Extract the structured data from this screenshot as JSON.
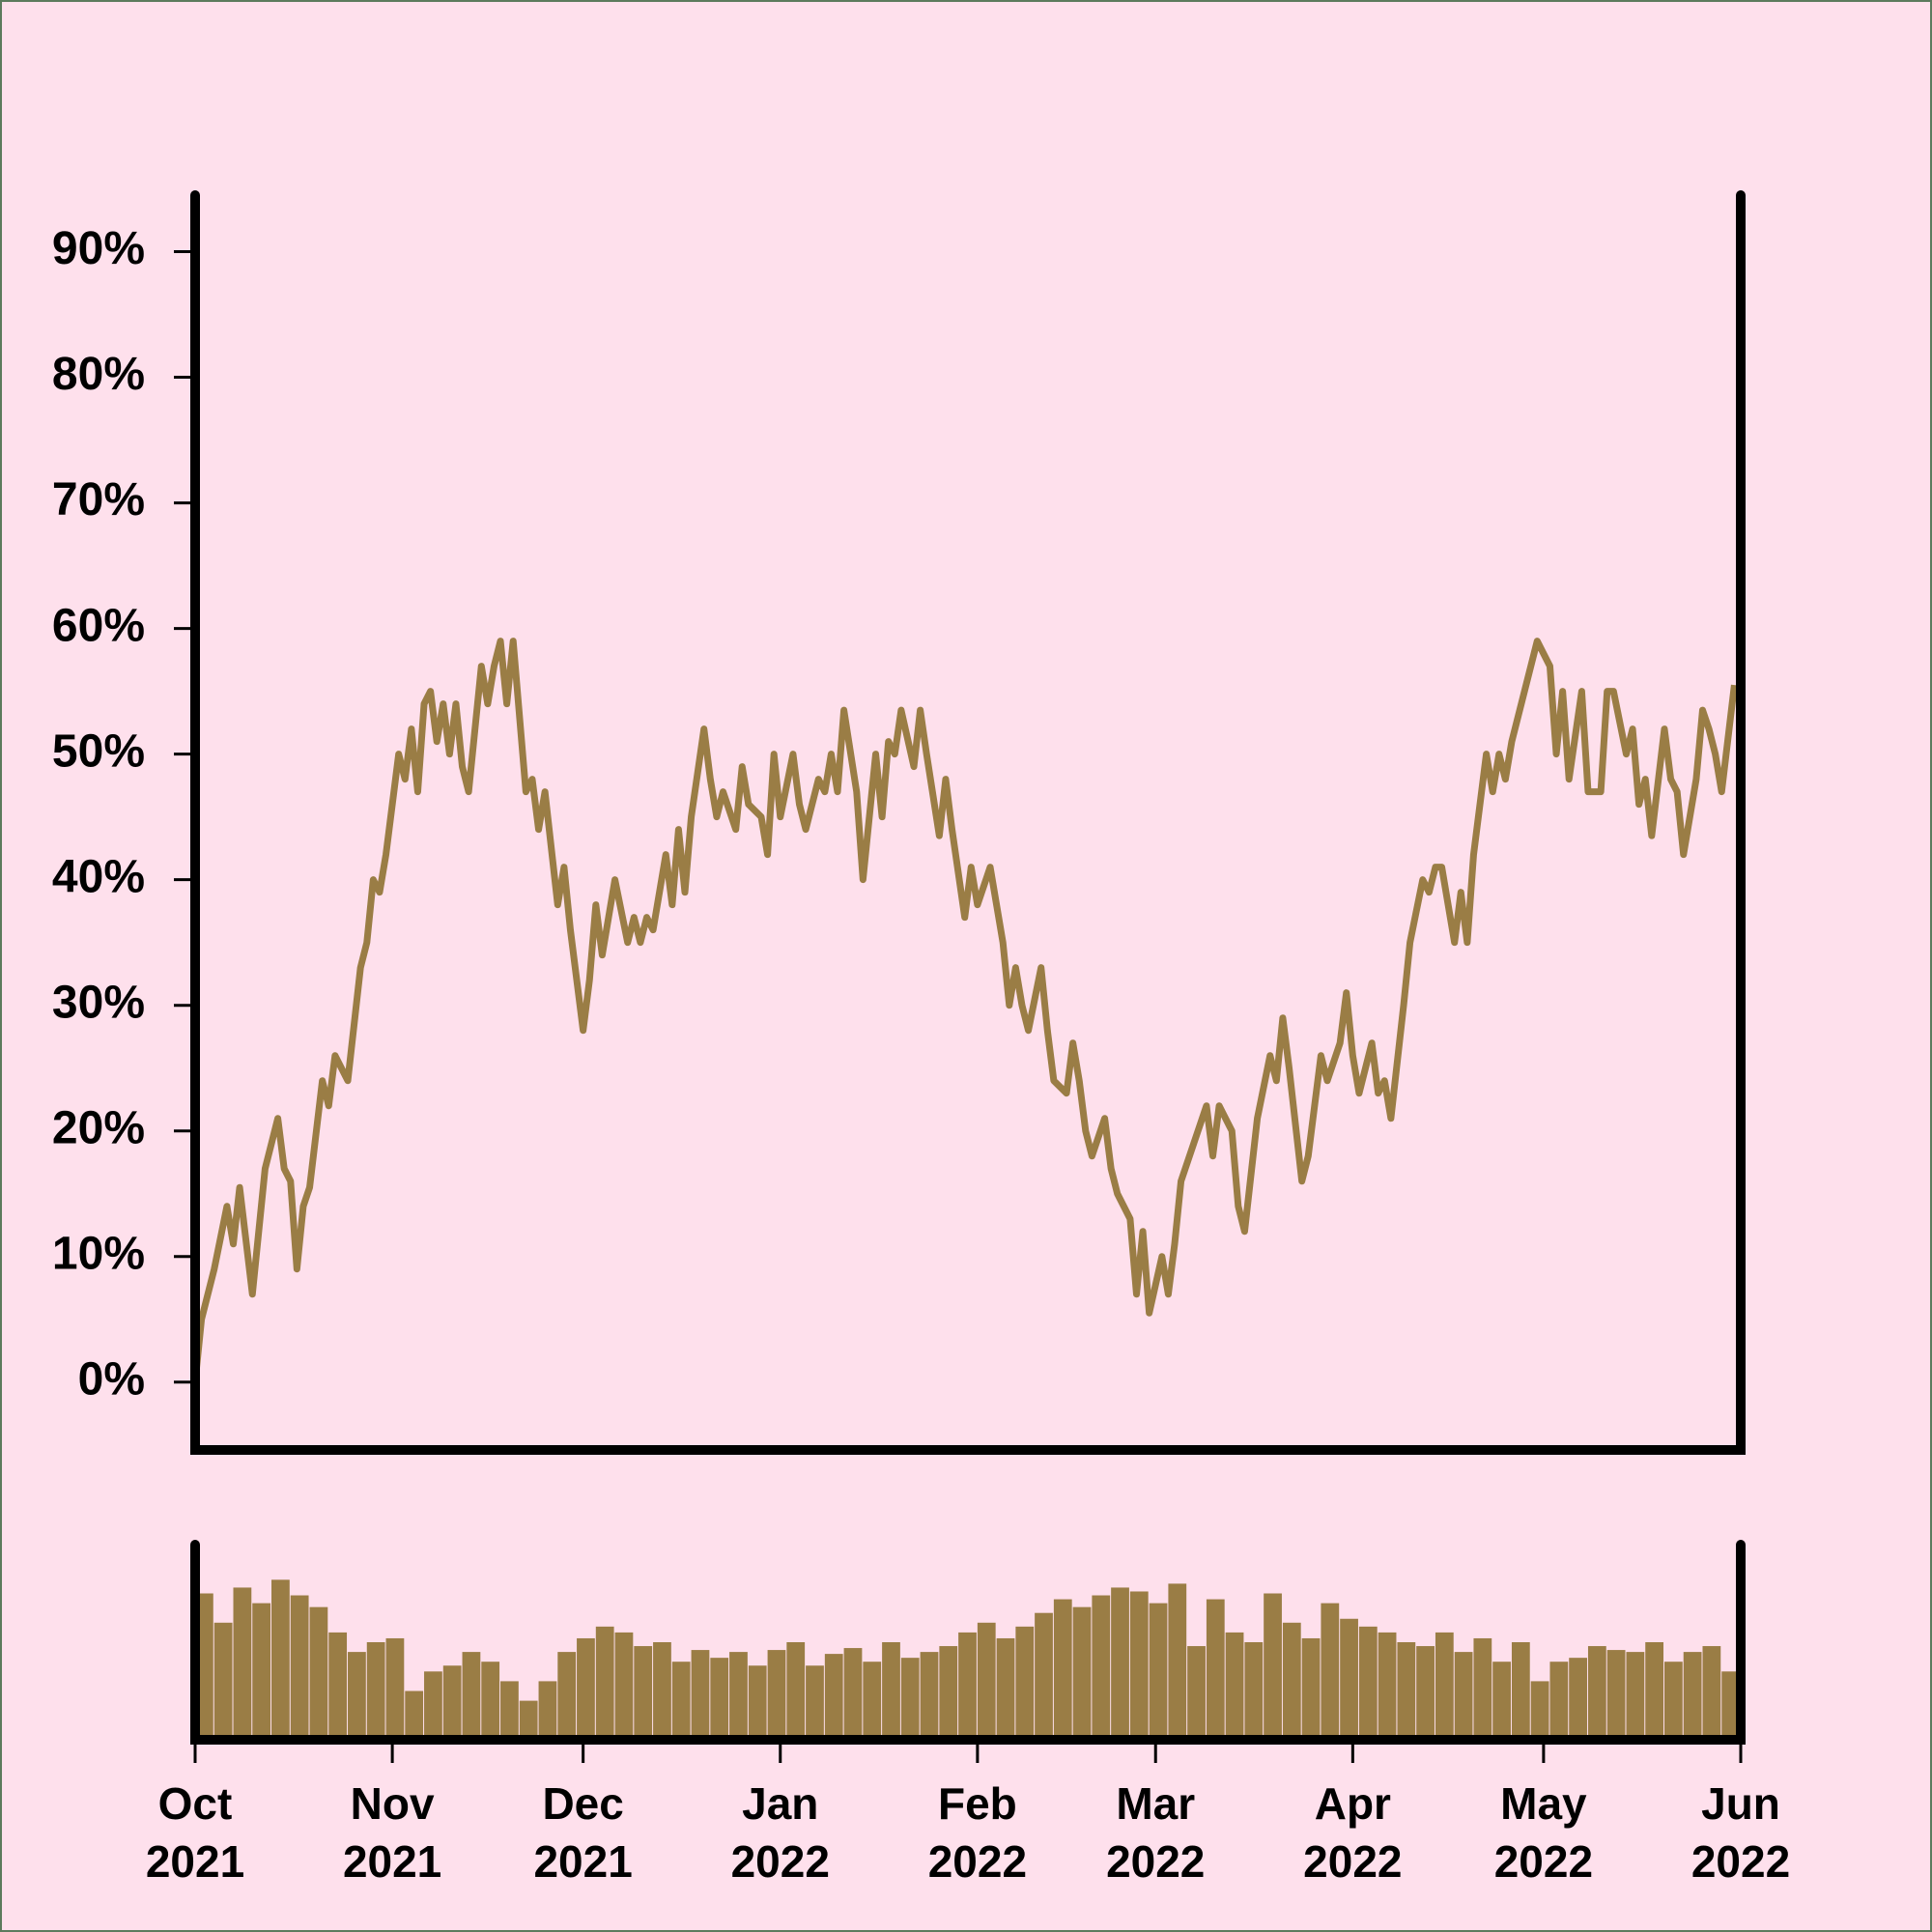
{
  "chart_data": [
    {
      "type": "line",
      "color": "#9a7d45",
      "x": [
        0,
        1,
        2,
        3,
        5,
        6,
        7,
        9,
        11,
        12,
        13,
        14,
        15,
        16,
        17,
        18,
        20,
        21,
        22,
        23,
        24,
        26,
        27,
        28,
        29,
        30,
        32,
        33,
        34,
        35,
        36,
        37,
        38,
        39,
        40,
        41,
        42,
        43,
        45,
        46,
        47,
        48,
        49,
        50,
        52,
        53,
        54,
        55,
        57,
        58,
        59,
        61,
        62,
        63,
        64,
        65,
        66,
        68,
        69,
        70,
        71,
        72,
        74,
        75,
        76,
        77,
        78,
        80,
        81,
        82,
        83,
        85,
        86,
        87,
        89,
        90,
        91,
        92,
        94,
        95,
        96,
        98,
        99,
        100,
        101,
        102,
        104,
        105,
        107,
        108,
        109,
        110,
        111,
        113,
        114,
        115,
        117,
        118,
        119,
        121,
        122,
        123,
        125,
        126,
        127,
        128,
        129,
        130,
        131,
        133,
        134,
        135,
        137,
        138,
        139,
        140,
        141,
        143,
        144,
        145,
        147,
        148,
        149,
        150,
        152,
        153,
        154,
        155,
        157,
        159,
        160,
        161,
        163,
        164,
        165,
        167,
        169,
        170,
        171,
        172,
        174,
        175,
        177,
        178,
        180,
        181,
        182,
        183,
        185,
        186,
        187,
        188,
        190,
        191,
        193,
        194,
        195,
        196,
        198,
        199,
        200,
        201,
        203,
        204,
        205,
        206,
        207,
        209,
        210,
        211,
        213,
        214,
        215,
        216,
        218,
        219,
        221,
        222,
        223,
        225,
        226,
        227,
        228,
        229,
        231,
        232,
        233,
        234,
        236,
        237,
        238,
        239,
        240,
        242
      ],
      "values": [
        0,
        5,
        7,
        9,
        14,
        11,
        15.5,
        7,
        17,
        19,
        21,
        17,
        16,
        9,
        14,
        15.5,
        24,
        22,
        26,
        25,
        24,
        33,
        35,
        40,
        39,
        42,
        50,
        48,
        52,
        47,
        54,
        55,
        51,
        54,
        50,
        54,
        49,
        47,
        57,
        54,
        57,
        59,
        54,
        59,
        47,
        48,
        44,
        47,
        38,
        41,
        36,
        28,
        32,
        38,
        34,
        37,
        40,
        35,
        37,
        35,
        37,
        36,
        42,
        38,
        44,
        39,
        45,
        52,
        48,
        45,
        47,
        44,
        49,
        46,
        45,
        42,
        50,
        45,
        50,
        46,
        44,
        48,
        47,
        50,
        47,
        53.5,
        47,
        40,
        50,
        45,
        51,
        50,
        53.5,
        49,
        53.5,
        50,
        43.5,
        48,
        44,
        37,
        41,
        38,
        41,
        38,
        35,
        30,
        33,
        30,
        28,
        33,
        28,
        24,
        23,
        27,
        24,
        20,
        18,
        21,
        17,
        15,
        13,
        7,
        12,
        5.5,
        10,
        7,
        11,
        16,
        19,
        22,
        18,
        22,
        20,
        14,
        12,
        21,
        26,
        24,
        29,
        25,
        16,
        18,
        26,
        24,
        27,
        31,
        26,
        23,
        27,
        23,
        24,
        21,
        30,
        35,
        40,
        39,
        41,
        41,
        35,
        39,
        35,
        42,
        50,
        47,
        50,
        48,
        51,
        55,
        57,
        59,
        57,
        50,
        55,
        48,
        55,
        47,
        47,
        55,
        55,
        50,
        52,
        46,
        48,
        43.5,
        52,
        48,
        47,
        42,
        48,
        53.5,
        52,
        50,
        47,
        55.5
      ],
      "xlim": [
        0,
        243
      ],
      "ylim": [
        -5.4,
        94.5
      ],
      "yticks": [
        {
          "value": 0,
          "label": "0%"
        },
        {
          "value": 10,
          "label": "10%"
        },
        {
          "value": 20,
          "label": "20%"
        },
        {
          "value": 30,
          "label": "30%"
        },
        {
          "value": 40,
          "label": "40%"
        },
        {
          "value": 50,
          "label": "50%"
        },
        {
          "value": 60,
          "label": "60%"
        },
        {
          "value": 70,
          "label": "70%"
        },
        {
          "value": 80,
          "label": "80%"
        },
        {
          "value": 90,
          "label": "90%"
        }
      ]
    },
    {
      "type": "bar",
      "color": "#9a7d45",
      "x": [
        0,
        3,
        6,
        9,
        12,
        15,
        18,
        21,
        24,
        27,
        30,
        33,
        36,
        39,
        42,
        45,
        48,
        51,
        54,
        57,
        60,
        63,
        66,
        69,
        72,
        75,
        78,
        81,
        84,
        87,
        90,
        93,
        96,
        99,
        102,
        105,
        108,
        111,
        114,
        117,
        120,
        123,
        126,
        129,
        132,
        135,
        138,
        141,
        144,
        147,
        150,
        153,
        156,
        159,
        162,
        165,
        168,
        171,
        174,
        177,
        180,
        183,
        186,
        189,
        192,
        195,
        198,
        201,
        204,
        207,
        210,
        213,
        216,
        219,
        222,
        225,
        228,
        231,
        234,
        237,
        240
      ],
      "values": [
        75,
        60,
        78,
        70,
        82,
        74,
        68,
        55,
        45,
        50,
        52,
        25,
        35,
        38,
        45,
        40,
        30,
        20,
        30,
        45,
        52,
        58,
        55,
        48,
        50,
        40,
        46,
        42,
        45,
        38,
        46,
        50,
        38,
        44,
        47,
        40,
        50,
        42,
        45,
        48,
        55,
        60,
        52,
        58,
        65,
        72,
        68,
        74,
        78,
        76,
        70,
        80,
        48,
        72,
        55,
        50,
        75,
        60,
        52,
        70,
        62,
        58,
        55,
        50,
        48,
        55,
        45,
        52,
        40,
        50,
        30,
        40,
        42,
        48,
        46,
        45,
        50,
        40,
        45,
        48,
        35
      ],
      "xlim": [
        0,
        243
      ],
      "ylim": [
        0,
        100
      ],
      "xticks": [
        {
          "value": 0,
          "label": "Oct 2021"
        },
        {
          "value": 31,
          "label": "Nov 2021"
        },
        {
          "value": 61,
          "label": "Dec 2021"
        },
        {
          "value": 92,
          "label": "Jan 2022"
        },
        {
          "value": 123,
          "label": "Feb 2022"
        },
        {
          "value": 151,
          "label": "Mar 2022"
        },
        {
          "value": 182,
          "label": "Apr 2022"
        },
        {
          "value": 212,
          "label": "May 2022"
        },
        {
          "value": 243,
          "label": "Jun 2022"
        }
      ]
    }
  ]
}
